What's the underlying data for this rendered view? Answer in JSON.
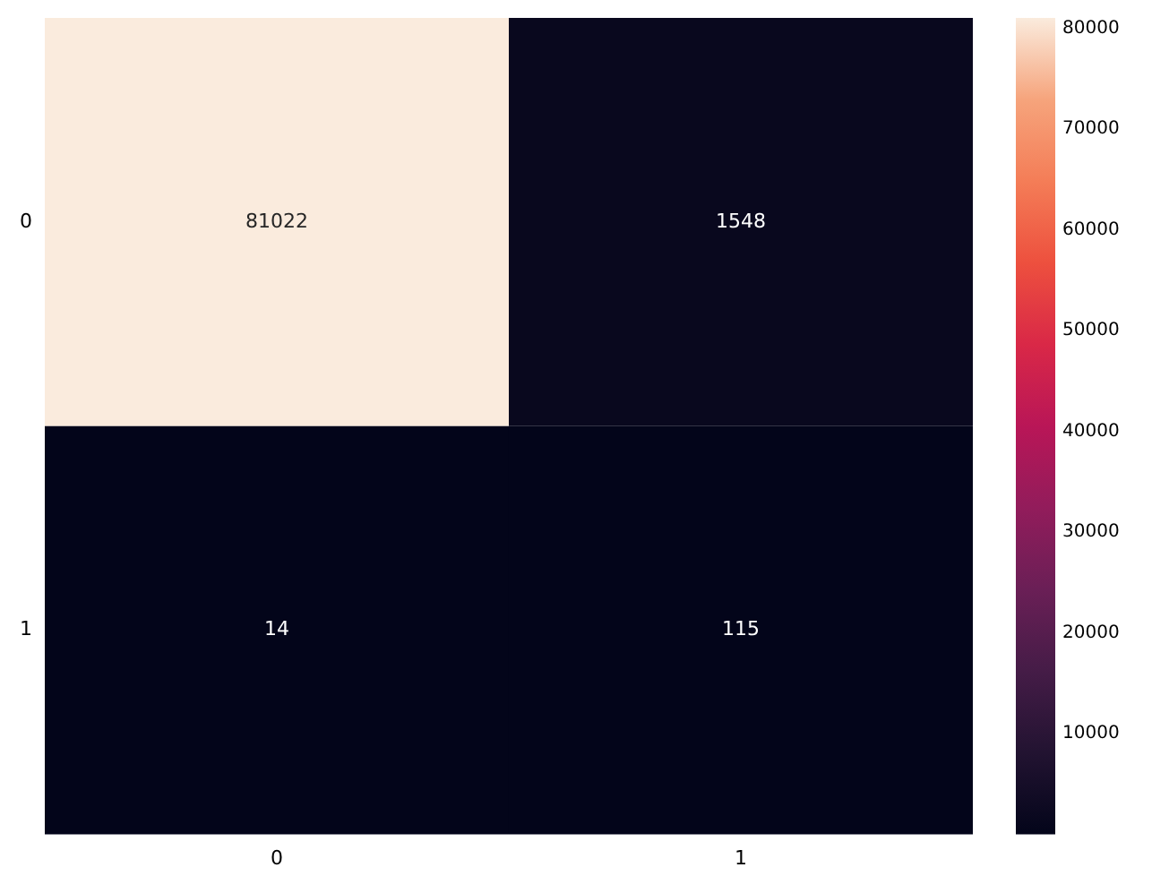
{
  "chart_data": {
    "type": "heatmap",
    "categories": [
      "0",
      "1"
    ],
    "y_categories": [
      "0",
      "1"
    ],
    "cells": [
      [
        81022,
        1548
      ],
      [
        14,
        115
      ]
    ],
    "clim": [
      14,
      81022
    ],
    "cticks": [
      10000,
      20000,
      30000,
      40000,
      50000,
      60000,
      70000,
      80000
    ],
    "data_labels": true
  }
}
